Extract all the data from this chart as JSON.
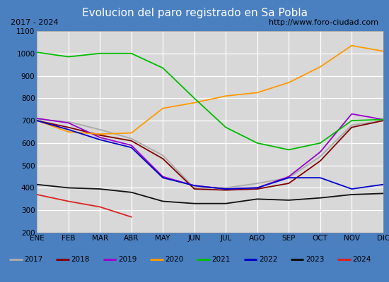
{
  "title": "Evolucion del paro registrado en Sa Pobla",
  "subtitle_left": "2017 - 2024",
  "subtitle_right": "http://www.foro-ciudad.com",
  "months": [
    "ENE",
    "FEB",
    "MAR",
    "ABR",
    "MAY",
    "JUN",
    "JUL",
    "AGO",
    "SEP",
    "OCT",
    "NOV",
    "DIC"
  ],
  "ylim": [
    200,
    1100
  ],
  "yticks": [
    200,
    300,
    400,
    500,
    600,
    700,
    800,
    900,
    1000,
    1100
  ],
  "series": [
    {
      "year": "2017",
      "color": "#aaaaaa",
      "data": [
        705,
        695,
        660,
        620,
        545,
        400,
        400,
        420,
        445,
        540,
        680,
        700
      ]
    },
    {
      "year": "2018",
      "color": "#800000",
      "data": [
        700,
        670,
        635,
        610,
        530,
        395,
        390,
        395,
        420,
        520,
        670,
        700
      ]
    },
    {
      "year": "2019",
      "color": "#9900cc",
      "data": [
        710,
        690,
        625,
        590,
        450,
        410,
        395,
        400,
        450,
        560,
        730,
        705
      ]
    },
    {
      "year": "2020",
      "color": "#ff9900",
      "data": [
        700,
        650,
        640,
        645,
        755,
        780,
        810,
        825,
        870,
        940,
        1035,
        1010
      ]
    },
    {
      "year": "2021",
      "color": "#00bb00",
      "data": [
        1005,
        985,
        1000,
        1000,
        935,
        800,
        670,
        600,
        570,
        600,
        700,
        705
      ]
    },
    {
      "year": "2022",
      "color": "#0000cc",
      "data": [
        700,
        660,
        615,
        580,
        445,
        410,
        395,
        400,
        445,
        445,
        395,
        415
      ]
    },
    {
      "year": "2023",
      "color": "#111111",
      "data": [
        415,
        400,
        395,
        380,
        340,
        330,
        330,
        350,
        345,
        355,
        370,
        375
      ]
    },
    {
      "year": "2024",
      "color": "#dd2222",
      "data": [
        370,
        340,
        315,
        270,
        null,
        null,
        null,
        null,
        null,
        null,
        null,
        null
      ]
    }
  ],
  "title_color": "#ffffff",
  "title_bg": "#4a7fc0",
  "plot_bg": "#d8d8d8",
  "grid_color": "#ffffff",
  "fig_bg": "#4a7fc0",
  "border_color": "#888888",
  "subtitle_bg": "#e8e8e8"
}
